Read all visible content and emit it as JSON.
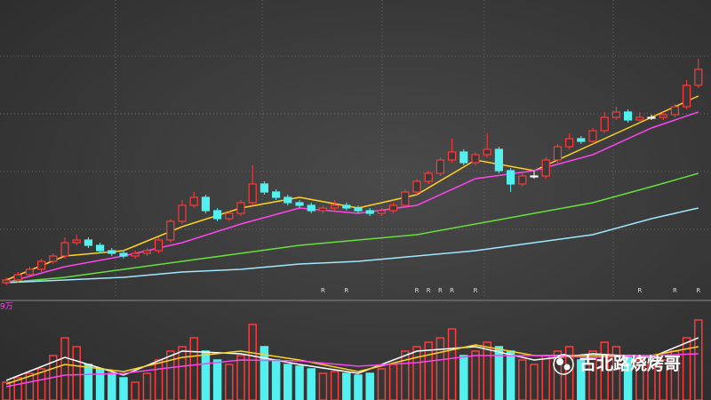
{
  "chart_data": {
    "type": "candlestick",
    "up_color": "#ff3b3b",
    "down_color": "#54f0f0",
    "ylim": [
      0,
      110
    ],
    "ohlc": [
      [
        4,
        6,
        3,
        5
      ],
      [
        5,
        8,
        4,
        7
      ],
      [
        7,
        10,
        6,
        9
      ],
      [
        9,
        13,
        8,
        12
      ],
      [
        12,
        15,
        11,
        14
      ],
      [
        14,
        21,
        13,
        19
      ],
      [
        19,
        22,
        18,
        20
      ],
      [
        20,
        21,
        17,
        18
      ],
      [
        18,
        19,
        15,
        16
      ],
      [
        16,
        17,
        14,
        15
      ],
      [
        15,
        16,
        13,
        14
      ],
      [
        14,
        16,
        13,
        15
      ],
      [
        15,
        17,
        14,
        16
      ],
      [
        16,
        21,
        15,
        20
      ],
      [
        20,
        28,
        19,
        27
      ],
      [
        27,
        35,
        26,
        33
      ],
      [
        33,
        38,
        32,
        36
      ],
      [
        36,
        37,
        30,
        31
      ],
      [
        31,
        32,
        27,
        28
      ],
      [
        28,
        31,
        27,
        30
      ],
      [
        30,
        35,
        29,
        34
      ],
      [
        34,
        48,
        33,
        41
      ],
      [
        41,
        42,
        37,
        38
      ],
      [
        38,
        39,
        35,
        36
      ],
      [
        36,
        37,
        33,
        34
      ],
      [
        34,
        35,
        32,
        33
      ],
      [
        33,
        34,
        30,
        31
      ],
      [
        31,
        33,
        30,
        32
      ],
      [
        32,
        35,
        31,
        33
      ],
      [
        33,
        34,
        31,
        32
      ],
      [
        32,
        33,
        30,
        31
      ],
      [
        31,
        32,
        29,
        30
      ],
      [
        30,
        32,
        29,
        31
      ],
      [
        31,
        34,
        30,
        33
      ],
      [
        33,
        39,
        32,
        38
      ],
      [
        38,
        43,
        37,
        42
      ],
      [
        42,
        46,
        41,
        45
      ],
      [
        45,
        51,
        44,
        50
      ],
      [
        50,
        58,
        49,
        53
      ],
      [
        53,
        54,
        48,
        49
      ],
      [
        49,
        53,
        48,
        52
      ],
      [
        52,
        60,
        51,
        54
      ],
      [
        54,
        55,
        45,
        46
      ],
      [
        46,
        47,
        38,
        41
      ],
      [
        41,
        45,
        40,
        44
      ],
      [
        44,
        46,
        43,
        44
      ],
      [
        44,
        51,
        43,
        50
      ],
      [
        50,
        56,
        49,
        55
      ],
      [
        55,
        60,
        54,
        58
      ],
      [
        58,
        59,
        56,
        57
      ],
      [
        57,
        62,
        56,
        61
      ],
      [
        61,
        68,
        60,
        66
      ],
      [
        66,
        70,
        65,
        68
      ],
      [
        68,
        69,
        64,
        65
      ],
      [
        65,
        68,
        64,
        66
      ],
      [
        66,
        67,
        65,
        66
      ],
      [
        66,
        68,
        65,
        67
      ],
      [
        67,
        71,
        66,
        70
      ],
      [
        70,
        80,
        69,
        78
      ],
      [
        78,
        88,
        77,
        84
      ]
    ],
    "ma": {
      "x": [
        0,
        5,
        10,
        15,
        20,
        25,
        30,
        35,
        40,
        45,
        50,
        55,
        59
      ],
      "series": [
        {
          "color": "#ffd21e",
          "values": [
            5,
            14,
            16,
            25,
            32,
            36,
            32,
            37,
            50,
            46,
            56,
            66,
            74
          ]
        },
        {
          "color": "#ff44ee",
          "values": [
            4,
            10,
            14,
            19,
            26,
            32,
            30,
            33,
            43,
            46,
            52,
            62,
            68
          ]
        },
        {
          "color": "#66e03a",
          "values": [
            4,
            6,
            9,
            12,
            15,
            18,
            20,
            22,
            26,
            30,
            34,
            40,
            45
          ]
        },
        {
          "color": "#9fe8ff",
          "values": [
            4,
            5,
            6,
            8,
            9,
            11,
            12,
            14,
            16,
            19,
            22,
            28,
            32
          ]
        }
      ]
    },
    "volume": {
      "ylim": [
        0,
        100
      ],
      "label": "9万",
      "values": [
        20,
        25,
        30,
        35,
        50,
        70,
        60,
        40,
        35,
        30,
        25,
        20,
        30,
        45,
        55,
        60,
        70,
        55,
        45,
        40,
        50,
        85,
        60,
        45,
        40,
        38,
        35,
        30,
        32,
        30,
        28,
        30,
        35,
        40,
        55,
        60,
        65,
        70,
        80,
        50,
        55,
        65,
        60,
        55,
        45,
        40,
        50,
        55,
        60,
        45,
        55,
        65,
        60,
        50,
        45,
        40,
        45,
        55,
        70,
        90
      ],
      "ma": {
        "x": [
          0,
          5,
          10,
          15,
          20,
          25,
          30,
          35,
          40,
          45,
          50,
          55,
          59
        ],
        "series": [
          {
            "color": "#ffffff",
            "values": [
              22,
              48,
              28,
              55,
              52,
              40,
              30,
              55,
              60,
              45,
              52,
              48,
              70
            ]
          },
          {
            "color": "#ffd21e",
            "values": [
              18,
              40,
              32,
              48,
              55,
              45,
              32,
              48,
              62,
              50,
              50,
              50,
              60
            ]
          },
          {
            "color": "#ff44ee",
            "values": [
              15,
              28,
              30,
              38,
              45,
              44,
              38,
              42,
              50,
              50,
              48,
              50,
              52
            ]
          }
        ]
      }
    },
    "r_markers": {
      "label": "R",
      "at": [
        27,
        29,
        35,
        36,
        37,
        38,
        40,
        54,
        57,
        59
      ]
    },
    "watermark": "古北路烧烤哥"
  }
}
